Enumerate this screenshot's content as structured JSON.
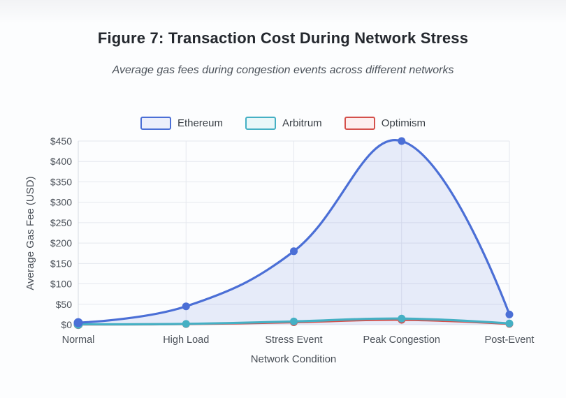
{
  "figure": {
    "title": "Figure 7: Transaction Cost During Network Stress",
    "subtitle": "Average gas fees during congestion events across different networks"
  },
  "chart_data": {
    "type": "line",
    "categories": [
      "Normal",
      "High Load",
      "Stress Event",
      "Peak Congestion",
      "Post-Event"
    ],
    "xlabel": "Network Condition",
    "ylabel": "Average Gas Fee (USD)",
    "ylim": [
      0,
      450
    ],
    "y_tick_step": 50,
    "y_tick_prefix": "$",
    "grid": true,
    "legend_position": "top",
    "curve": "smooth",
    "series": [
      {
        "name": "Ethereum",
        "values": [
          5,
          45,
          180,
          450,
          25
        ],
        "color": "#4b6fd6",
        "fill": true,
        "fill_color": "rgba(78,111,214,0.12)",
        "swatch_fill": "#eceffb"
      },
      {
        "name": "Arbitrum",
        "values": [
          1,
          2,
          8,
          15,
          3
        ],
        "color": "#45b0c4",
        "fill": false,
        "swatch_fill": "#e9f7f9"
      },
      {
        "name": "Optimism",
        "values": [
          0.5,
          1.5,
          6,
          12,
          2
        ],
        "color": "#d4504b",
        "fill": false,
        "swatch_fill": "#fdeeee"
      }
    ],
    "style": {
      "grid_color": "#e5e8ee",
      "axis_line_color": "#d6dae1",
      "tick_label_color": "#4b5159",
      "line_width": 3.2,
      "point_radius": 5.5
    }
  }
}
